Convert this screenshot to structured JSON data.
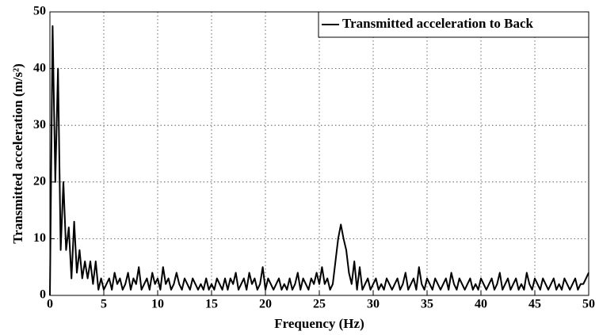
{
  "chart_data": {
    "type": "line",
    "xlabel": "Frequency (Hz)",
    "ylabel": "Transmitted acceleration (m/s²)",
    "xlim": [
      0,
      50
    ],
    "ylim": [
      0,
      50
    ],
    "xticks": [
      0,
      5,
      10,
      15,
      20,
      25,
      30,
      35,
      40,
      45,
      50
    ],
    "yticks": [
      0,
      10,
      20,
      30,
      40,
      50
    ],
    "grid": true,
    "legend": "upper right",
    "x": [
      0,
      0.25,
      0.5,
      0.75,
      1,
      1.25,
      1.5,
      1.75,
      2,
      2.25,
      2.5,
      2.75,
      3,
      3.25,
      3.5,
      3.75,
      4,
      4.25,
      4.5,
      4.75,
      5,
      5.25,
      5.5,
      5.75,
      6,
      6.25,
      6.5,
      6.75,
      7,
      7.25,
      7.5,
      7.75,
      8,
      8.25,
      8.5,
      8.75,
      9,
      9.25,
      9.5,
      9.75,
      10,
      10.25,
      10.5,
      10.75,
      11,
      11.25,
      11.5,
      11.75,
      12,
      12.25,
      12.5,
      12.75,
      13,
      13.25,
      13.5,
      13.75,
      14,
      14.25,
      14.5,
      14.75,
      15,
      15.25,
      15.5,
      15.75,
      16,
      16.25,
      16.5,
      16.75,
      17,
      17.25,
      17.5,
      17.75,
      18,
      18.25,
      18.5,
      18.75,
      19,
      19.25,
      19.5,
      19.75,
      20,
      20.25,
      20.5,
      20.75,
      21,
      21.25,
      21.5,
      21.75,
      22,
      22.25,
      22.5,
      22.75,
      23,
      23.25,
      23.5,
      23.75,
      24,
      24.25,
      24.5,
      24.75,
      25,
      25.25,
      25.5,
      25.75,
      26,
      26.25,
      26.5,
      26.75,
      27,
      27.25,
      27.5,
      27.75,
      28,
      28.25,
      28.5,
      28.75,
      29,
      29.25,
      29.5,
      29.75,
      30,
      30.25,
      30.5,
      30.75,
      31,
      31.25,
      31.5,
      31.75,
      32,
      32.25,
      32.5,
      32.75,
      33,
      33.25,
      33.5,
      33.75,
      34,
      34.25,
      34.5,
      34.75,
      35,
      35.25,
      35.5,
      35.75,
      36,
      36.25,
      36.5,
      36.75,
      37,
      37.25,
      37.5,
      37.75,
      38,
      38.25,
      38.5,
      38.75,
      39,
      39.25,
      39.5,
      39.75,
      40,
      40.25,
      40.5,
      40.75,
      41,
      41.25,
      41.5,
      41.75,
      42,
      42.25,
      42.5,
      42.75,
      43,
      43.25,
      43.5,
      43.75,
      44,
      44.25,
      44.5,
      44.75,
      45,
      45.25,
      45.5,
      45.75,
      46,
      46.25,
      46.5,
      46.75,
      47,
      47.25,
      47.5,
      47.75,
      48,
      48.25,
      48.5,
      48.75,
      49,
      49.25,
      49.5,
      49.75,
      50
    ],
    "series": [
      {
        "name": "Transmitted acceleration to Back",
        "color": "#000000",
        "values": [
          0,
          47.5,
          20,
          40,
          8,
          20,
          8,
          12,
          3,
          13,
          4,
          8,
          3,
          6,
          3,
          6,
          2,
          6,
          1,
          3,
          1,
          2,
          3,
          1,
          4,
          2,
          3,
          1,
          2,
          4,
          1,
          3,
          2,
          5,
          1,
          2,
          3,
          1,
          4,
          2,
          3,
          1,
          5,
          2,
          3,
          1,
          2,
          4,
          2,
          1,
          3,
          2,
          1,
          3,
          2,
          1,
          2,
          1,
          3,
          1,
          2,
          1,
          3,
          2,
          1,
          3,
          1,
          3,
          2,
          4,
          1,
          2,
          3,
          1,
          4,
          2,
          3,
          1,
          2,
          5,
          1,
          3,
          2,
          1,
          2,
          3,
          1,
          2,
          1,
          3,
          1,
          2,
          4,
          1,
          3,
          2,
          1,
          3,
          2,
          4,
          2,
          5,
          2,
          3,
          1,
          2,
          6,
          10,
          12.5,
          10,
          8,
          4,
          2,
          6,
          1,
          5,
          1,
          2,
          3,
          1,
          2,
          3,
          1,
          2,
          1,
          3,
          2,
          1,
          2,
          3,
          1,
          2,
          4,
          1,
          2,
          3,
          1,
          5,
          2,
          1,
          3,
          2,
          1,
          3,
          2,
          1,
          2,
          3,
          1,
          4,
          2,
          1,
          3,
          2,
          1,
          2,
          3,
          1,
          2,
          1,
          3,
          2,
          1,
          2,
          3,
          1,
          2,
          4,
          1,
          2,
          3,
          1,
          2,
          3,
          1,
          2,
          1,
          4,
          2,
          1,
          3,
          2,
          1,
          3,
          2,
          1,
          2,
          3,
          1,
          2,
          1,
          3,
          2,
          1,
          2,
          3,
          1,
          2,
          2,
          3,
          4
        ]
      }
    ]
  }
}
